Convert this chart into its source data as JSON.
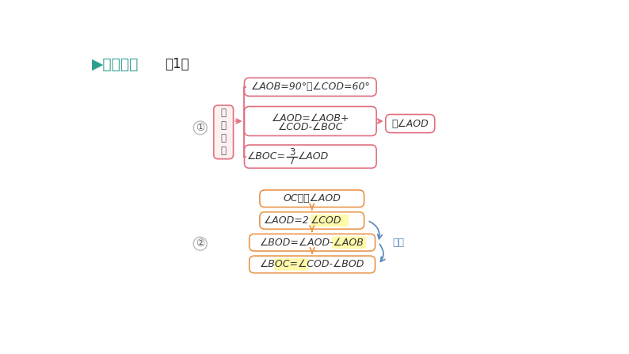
{
  "bg_color": "#ffffff",
  "title_color": "#2e9e8e",
  "title_text": "▶思路分析",
  "title_sub": "（1）",
  "section1": {
    "label": "①",
    "box_observe_lines": [
      "观",
      "察",
      "图",
      "形"
    ],
    "box_top": "∠AOB=90°，∠COD=60°",
    "box_mid_line1": "∠AOD=∠AOB+",
    "box_mid_line2": "∠COD-∠BOC",
    "box_bot_left": "∠BOC=",
    "box_bot_num": "3",
    "box_bot_den": "7",
    "box_bot_right": "∠AOD",
    "box_right": "求∠AOD",
    "pink_border": "#e07080",
    "pink_bg": "#fdf0f0",
    "pink_text": "#e07080"
  },
  "section2": {
    "label": "②",
    "box1": "OC平分∠AOD",
    "box2_left": "∠AOD=2",
    "box2_right": "∠COD",
    "box3_left": "∠BOD=∠AOD-",
    "box3_right": "∠AOB",
    "box4_left": "∠BOC=",
    "box4_mid": "∠COD",
    "box4_right": "-∠BOD",
    "zhizhi_text": "已知",
    "orange_border": "#e8964a",
    "orange_bg": "#ffffff",
    "yellow_highlight": "#fffaaa",
    "arrow_color": "#e8964a",
    "curve_color": "#5588bb",
    "zhizhi_color": "#5588bb"
  }
}
